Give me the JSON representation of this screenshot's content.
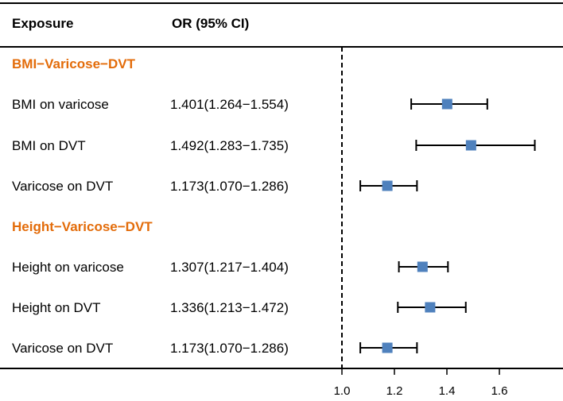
{
  "header": {
    "exposure_label": "Exposure",
    "or_label": "OR (95% CI)"
  },
  "colors": {
    "accent": "#E36C0A",
    "marker": "#4F81BD"
  },
  "chart_data": {
    "type": "forest",
    "reference_line": 1.0,
    "xlim": [
      1.0,
      1.8
    ],
    "ticks": [
      "1.0",
      "1.2",
      "1.4",
      "1.6"
    ],
    "tick_values": [
      1.0,
      1.2,
      1.4,
      1.6
    ],
    "groups": [
      {
        "title": "BMI−Varicose−DVT",
        "rows": [
          {
            "label": "BMI on varicose",
            "ci_text": "1.401(1.264−1.554)",
            "or": 1.401,
            "lower": 1.264,
            "upper": 1.554
          },
          {
            "label": "BMI on DVT",
            "ci_text": "1.492(1.283−1.735)",
            "or": 1.492,
            "lower": 1.283,
            "upper": 1.735
          },
          {
            "label": "Varicose on DVT",
            "ci_text": "1.173(1.070−1.286)",
            "or": 1.173,
            "lower": 1.07,
            "upper": 1.286
          }
        ]
      },
      {
        "title": "Height−Varicose−DVT",
        "rows": [
          {
            "label": "Height on varicose",
            "ci_text": "1.307(1.217−1.404)",
            "or": 1.307,
            "lower": 1.217,
            "upper": 1.404
          },
          {
            "label": "Height on DVT",
            "ci_text": "1.336(1.213−1.472)",
            "or": 1.336,
            "lower": 1.213,
            "upper": 1.472
          },
          {
            "label": "Varicose on DVT",
            "ci_text": "1.173(1.070−1.286)",
            "or": 1.173,
            "lower": 1.07,
            "upper": 1.286
          }
        ]
      }
    ]
  }
}
